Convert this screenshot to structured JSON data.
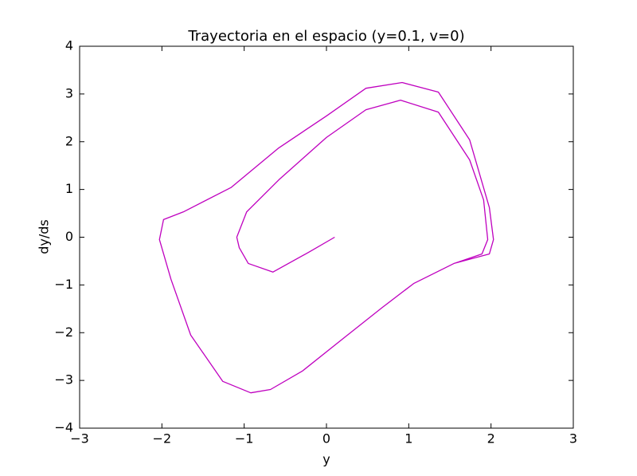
{
  "chart_data": {
    "type": "line",
    "title": "Trayectoria en el espacio (y=0.1, v=0)",
    "xlabel": "y",
    "ylabel": "dy/ds",
    "x": [
      0.1,
      -0.2,
      -0.65,
      -0.95,
      -1.06,
      -1.09,
      -0.97,
      -0.58,
      0,
      0.48,
      0.9,
      1.36,
      1.74,
      1.91,
      1.96,
      1.89,
      1.55,
      1.06,
      0.68,
      0.19,
      -0.29,
      -0.68,
      -0.92,
      -1.26,
      -1.65,
      -1.89,
      -2.03,
      -1.98,
      -1.74,
      -1.16,
      -0.58,
      0,
      0.48,
      0.92,
      1.36,
      1.74,
      1.98,
      2.03,
      1.98,
      1.55,
      1.06
    ],
    "series": [
      {
        "color": "#bf00bf",
        "values": [
          0,
          -0.3,
          -0.73,
          -0.55,
          -0.22,
          0,
          0.53,
          1.2,
          2.09,
          2.67,
          2.87,
          2.62,
          1.62,
          0.78,
          -0.05,
          -0.35,
          -0.55,
          -0.97,
          -1.47,
          -2.14,
          -2.8,
          -3.19,
          -3.26,
          -3.02,
          -2.05,
          -0.88,
          -0.05,
          0.37,
          0.53,
          1.04,
          1.87,
          2.54,
          3.12,
          3.24,
          3.04,
          2.04,
          0.62,
          -0.05,
          -0.35,
          -0.55,
          -0.97
        ]
      }
    ],
    "xlim": [
      -3,
      3
    ],
    "ylim": [
      -4,
      4
    ],
    "xticks": [
      {
        "value": -3,
        "label": "−3"
      },
      {
        "value": -2,
        "label": "−2"
      },
      {
        "value": -1,
        "label": "−1"
      },
      0,
      1,
      2,
      3
    ],
    "yticks": [
      {
        "value": -4,
        "label": "−4"
      },
      {
        "value": -3,
        "label": "−3"
      },
      {
        "value": -2,
        "label": "−2"
      },
      {
        "value": -1,
        "label": "−1"
      },
      0,
      1,
      2,
      3,
      4
    ],
    "grid": false
  }
}
